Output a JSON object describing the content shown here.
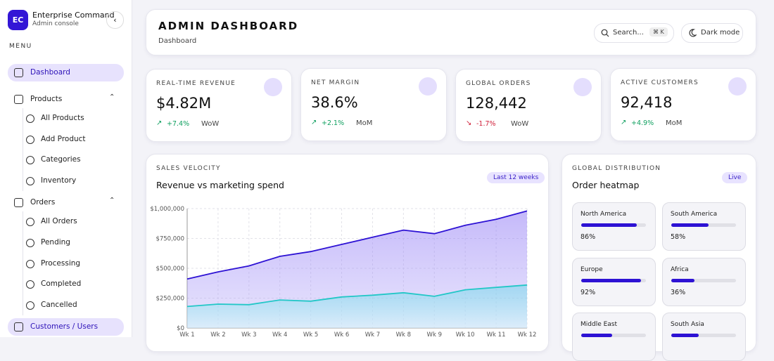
{
  "sidebar": {
    "brand_initials": "EC",
    "brand_title": "Enterprise Command",
    "brand_subtitle": "Admin console",
    "menu_label": "MENU",
    "items": [
      {
        "label": "Dashboard",
        "active": true
      },
      {
        "label": "Products",
        "children": [
          "All Products",
          "Add Product",
          "Categories",
          "Inventory"
        ]
      },
      {
        "label": "Orders",
        "children": [
          "All Orders",
          "Pending",
          "Processing",
          "Completed",
          "Cancelled"
        ]
      },
      {
        "label": "Customers / Users",
        "active": true
      }
    ]
  },
  "header": {
    "title": "ADMIN DASHBOARD",
    "breadcrumb": "Dashboard",
    "search_placeholder": "Search...",
    "search_shortcut": "⌘ K",
    "theme_toggle": "Dark mode"
  },
  "kpis": [
    {
      "label": "REAL-TIME REVENUE",
      "value": "$4.82M",
      "change": "+7.4%",
      "period": "WoW",
      "trend": "up"
    },
    {
      "label": "NET MARGIN",
      "value": "38.6%",
      "change": "+2.1%",
      "period": "MoM",
      "trend": "up"
    },
    {
      "label": "GLOBAL ORDERS",
      "value": "128,442",
      "change": "-1.7%",
      "period": "WoW",
      "trend": "down"
    },
    {
      "label": "ACTIVE CUSTOMERS",
      "value": "92,418",
      "change": "+4.9%",
      "period": "MoM",
      "trend": "up"
    }
  ],
  "sales_chart": {
    "type": "area",
    "eyebrow": "SALES VELOCITY",
    "title": "Revenue vs marketing spend",
    "badge": "Last 12 weeks",
    "categories": [
      "Wk 1",
      "Wk 2",
      "Wk 3",
      "Wk 4",
      "Wk 5",
      "Wk 6",
      "Wk 7",
      "Wk 8",
      "Wk 9",
      "Wk 10",
      "Wk 11",
      "Wk 12"
    ],
    "series": [
      {
        "color": "#2d12d4",
        "values": [
          410000,
          470000,
          520000,
          600000,
          640000,
          700000,
          760000,
          820000,
          790000,
          860000,
          910000,
          980000
        ]
      },
      {
        "color": "#22c7c7",
        "values": [
          180000,
          200000,
          195000,
          235000,
          225000,
          260000,
          275000,
          295000,
          265000,
          320000,
          340000,
          360000
        ]
      }
    ],
    "ylim": [
      0,
      1000000
    ],
    "yticks": [
      {
        "value": 0,
        "label": "$0"
      },
      {
        "value": 250000,
        "label": "$250,000"
      },
      {
        "value": 500000,
        "label": "$500,000"
      },
      {
        "value": 750000,
        "label": "$750,000"
      },
      {
        "value": 1000000,
        "label": "$1,000,000"
      }
    ],
    "grid": true
  },
  "distribution": {
    "eyebrow": "GLOBAL DISTRIBUTION",
    "title": "Order heatmap",
    "badge": "Live",
    "bar_color": "#2d12d4",
    "regions": [
      {
        "name": "North America",
        "value": 86,
        "value_label": "86%"
      },
      {
        "name": "South America",
        "value": 58,
        "value_label": "58%"
      },
      {
        "name": "Europe",
        "value": 92,
        "value_label": "92%"
      },
      {
        "name": "Africa",
        "value": 36,
        "value_label": "36%"
      },
      {
        "name": "Middle East",
        "value": 48
      },
      {
        "name": "South Asia",
        "value": 42
      }
    ]
  }
}
